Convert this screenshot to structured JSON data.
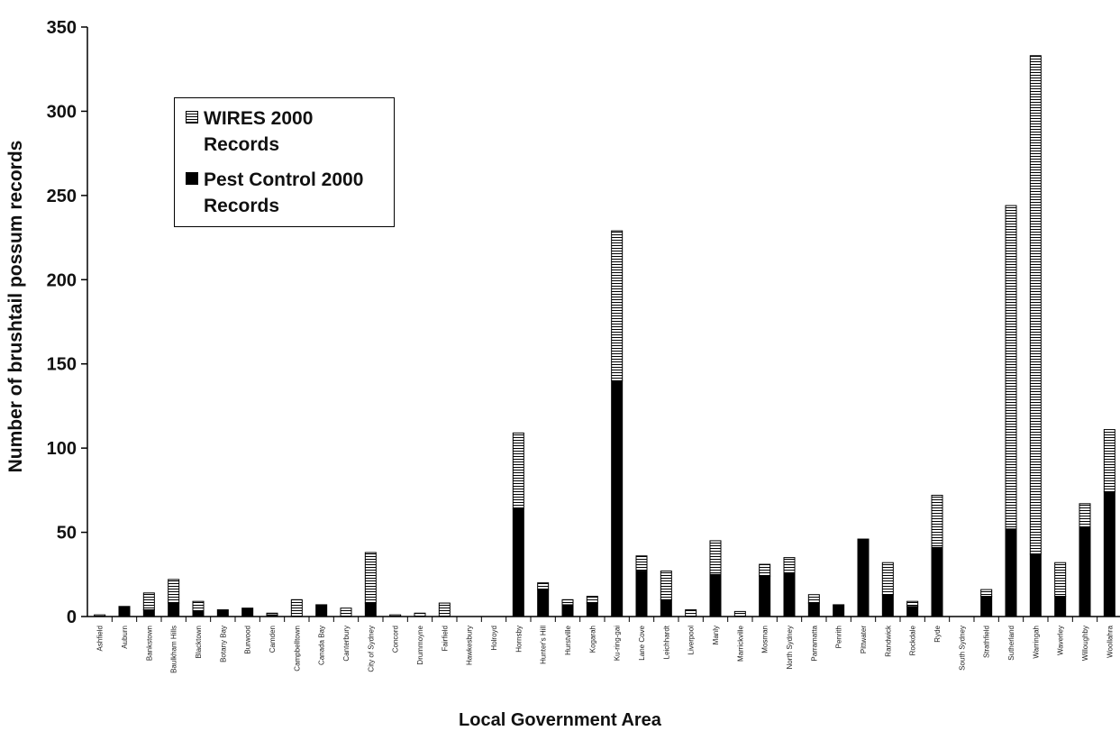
{
  "chart_data": {
    "type": "bar",
    "stacked": true,
    "xlabel": "Local Government Area",
    "ylabel": "Number of brushtail possum records",
    "ylim": [
      0,
      350
    ],
    "yticks": [
      0,
      50,
      100,
      150,
      200,
      250,
      300,
      350
    ],
    "grid": false,
    "legend_position": "top-left",
    "categories": [
      "Ashfield",
      "Auburn",
      "Bankstown",
      "Baulkham Hills",
      "Blacktown",
      "Botany Bay",
      "Burwood",
      "Camden",
      "Campbelltown",
      "Canada Bay",
      "Canterbury",
      "City of Sydney",
      "Concord",
      "Drummoyne",
      "Fairfield",
      "Hawkesbury",
      "Holroyd",
      "Hornsby",
      "Hunter's Hill",
      "Hurstville",
      "Kogarah",
      "Ku-ring-gai",
      "Lane Cove",
      "Leichhardt",
      "Liverpool",
      "Manly",
      "Marrickville",
      "Mosman",
      "North Sydney",
      "Parramatta",
      "Penrith",
      "Pittwater",
      "Randwick",
      "Rockdale",
      "Ryde",
      "South Sydney",
      "Strathfield",
      "Sutherland",
      "Warringah",
      "Waverley",
      "Willoughby",
      "Woollahra"
    ],
    "series": [
      {
        "name": "Pest Control 2000 Records",
        "color": "#000000",
        "values": [
          0,
          6,
          4,
          8,
          3,
          4,
          5,
          1,
          0,
          7,
          0,
          8,
          0,
          0,
          0,
          0,
          0,
          64,
          16,
          7,
          8,
          140,
          27,
          10,
          0,
          25,
          0,
          24,
          26,
          8,
          7,
          46,
          13,
          6,
          41,
          0,
          12,
          52,
          37,
          12,
          53,
          74
        ]
      },
      {
        "name": "WIRES 2000 Records",
        "color": "#ffffff",
        "values": [
          1,
          0,
          10,
          14,
          6,
          0,
          0,
          1,
          10,
          0,
          5,
          30,
          1,
          2,
          8,
          0,
          0,
          45,
          4,
          3,
          4,
          89,
          9,
          17,
          4,
          20,
          3,
          7,
          9,
          5,
          0,
          0,
          19,
          3,
          31,
          0,
          4,
          192,
          296,
          20,
          14,
          37
        ]
      }
    ]
  }
}
